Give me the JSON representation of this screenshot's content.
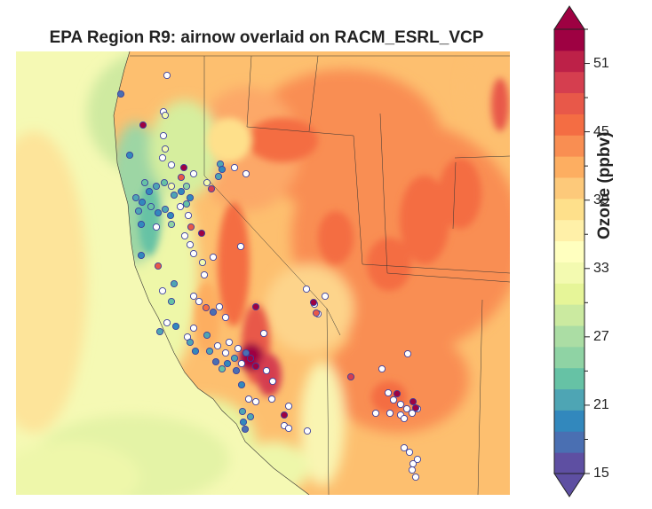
{
  "title": "EPA Region R9: airnow overlaid on RACM_ESRL_VCP",
  "colorbar": {
    "label": "Ozone (ppbv)",
    "min": 15,
    "max": 54,
    "step": 2,
    "ticks": [
      15,
      21,
      27,
      33,
      39,
      45,
      51
    ],
    "extend": "both",
    "colors": [
      "#5e4fa2",
      "#4a6fb2",
      "#3288bd",
      "#4ea5b4",
      "#66c2a5",
      "#8fd3a4",
      "#abdda4",
      "#cbeaa0",
      "#e6f598",
      "#f3fab0",
      "#ffffbf",
      "#fff0a8",
      "#fee08b",
      "#fdc97a",
      "#fdae61",
      "#f98e52",
      "#f46d43",
      "#e85849",
      "#d53e4f",
      "#bd2148",
      "#9e0142"
    ]
  },
  "map": {
    "region": "EPA Region R9",
    "model": "RACM_ESRL_VCP",
    "observations": "airnow"
  }
}
